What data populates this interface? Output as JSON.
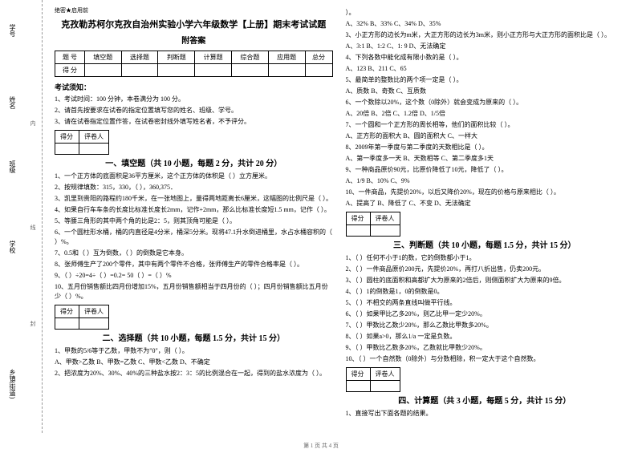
{
  "binding": {
    "labels": [
      "学号",
      "姓名",
      "班级",
      "学校",
      "乡镇(街道)"
    ],
    "dashText": [
      "内",
      "线",
      "封"
    ]
  },
  "seal": "绝密★启用前",
  "title": "克孜勒苏柯尔克孜自治州实验小学六年级数学【上册】期末考试试题",
  "subtitle": "附答案",
  "scoreTable": {
    "headers": [
      "题  号",
      "填空题",
      "选择题",
      "判断题",
      "计算题",
      "综合题",
      "应用题",
      "总分"
    ],
    "row2": "得  分"
  },
  "noticeTitle": "考试须知：",
  "notices": [
    "1、考试时间：100 分钟，本卷满分为 100 分。",
    "2、请首先按要求在试卷的指定位置填写您的姓名、班级、学号。",
    "3、请在试卷指定位置作答，在试卷密封线外填写姓名者，不予评分。"
  ],
  "secHeader": [
    "得分",
    "评卷人"
  ],
  "sections": {
    "s1": {
      "title": "一、填空题（共 10 小题，每题 2 分，共计 20 分）"
    },
    "s2": {
      "title": "二、选择题（共 10 小题，每题 1.5 分，共计 15 分）"
    },
    "s3": {
      "title": "三、判断题（共 10 小题，每题 1.5 分，共计 15 分）"
    },
    "s4": {
      "title": "四、计算题（共 3 小题，每题 5 分，共计 15 分）"
    }
  },
  "fill": [
    "1、一个正方体的底面积是36平方厘米，这个正方体的体积是（   ）立方厘米。",
    "2、按规律填数：315，330，（   ），360,375．",
    "3、凯里到贵阳的路程约180千米，在一张地图上，量得两地距离长6厘米，这幅图的比例尺是（        ）。",
    "4、如果自行车车条的长度比标准长度长2mm，记作+2mm，那么比标准长度短1.5 mm，记作（        ）。",
    "5、等腰三角形的其中两个角的比是2：5，则其顶角可能是（        ）。",
    "6、一个圆柱形水桶，桶的内直径是4分米，桶深5分米。现将47.1升水倒进桶里，水占水桶容积的（    ）%。",
    "7、0.5和（   ）互为倒数，（   ）的倒数是它本身。",
    "8、张师傅生产了200个零件，其中有两个零件不合格，张师傅生产的零件合格率是（  ）。",
    "9、（  ）÷20=4÷（  ）=0.2= 50（  ）=（  ）%",
    "10、五月份销售额比四月份增加15%，五月份销售额相当于四月份的（  ）；四月份销售额比五月份少（  ）%。"
  ],
  "choice": [
    {
      "q": "1、甲数的5/6等于乙数，甲数不为\"0\"，则（   ）。",
      "opts": "A、甲数>乙数   B、甲数=乙数   C、甲数<乙数   D、不确定"
    },
    {
      "q": "2、把浓度为20%、30%、40%的三种盐水按2：3：5的比例混合在一起，得到的盐水浓度为（   ）。",
      "opts": ""
    }
  ],
  "choiceRight": [
    {
      "q": "）。",
      "opts": "A、32%   B、33%   C、34%   D、35%"
    },
    {
      "q": "3、小正方形的边长为m米，大正方形的边长为3m米，则小正方形与大正方形的面积比是（   ）。",
      "opts": "A、3:1   B、1:2   C、1: 9   D、无法确定"
    },
    {
      "q": "4、下列各数中能化成有限小数的是（   ）。",
      "opts": "A、123      B、211      C、65"
    },
    {
      "q": "5、最简单的整数比的两个项一定是（   ）。",
      "opts": "A、质数   B、奇数   C、互质数"
    },
    {
      "q": "6、一个数除以20%，这个数（0除外）就会变成为原来的（   ）。",
      "opts": "A、20倍   B、2倍   C、1.2倍   D、1/5倍"
    },
    {
      "q": "7、一个圆和一个正方形的周长相等，他们的面积比较（   ）。",
      "opts": "A、正方形的面积大   B、圆的面积大   C、一样大"
    },
    {
      "q": "8、2009年第一季度与第二季度的天数相比是（   ）。",
      "opts": "A、第一季度多一天   B、天数相等   C、第二季度多1天"
    },
    {
      "q": "9、一种商品原价90元，比原价降低了10元，降低了（   ）。",
      "opts": "A、1/9   B、10%   C、9%"
    },
    {
      "q": "10、一件商品，先提价20%，以后又降价20%，现在的价格与原来相比（   ）。",
      "opts": "A、提高了   B、降低了   C、不变   D、无法确定"
    }
  ],
  "judge": [
    "1、（   ）任何不小于1的数，它的倒数都小于1。",
    "2、（   ）一件商品原价200元，先提价20%，再打八折出售，仍卖200元。",
    "3、（   ）圆柱的底面积和高都扩大为原来的2倍后，则侧面积扩大为原来的9倍。",
    "4、（   ）1的倒数是1，0的倒数是0。",
    "5、（   ）不相交的两条直线叫做平行线。",
    "6、（   ）如果甲比乙多20%，则乙比甲一定少20%。",
    "7、（   ）甲数比乙数少20%，那么乙数比甲数多20%。",
    "8、（   ）如果a>0，那么1/a 一定是负数。",
    "9、（   ）甲数比乙数多20%，乙数就比甲数少20%。",
    "10、（   ）一个自然数（0除外）与分数相除，积一定大于这个自然数。"
  ],
  "calc": [
    "1、直接写出下面各题的结果。"
  ],
  "footer": "第 1 页 共 4 页"
}
